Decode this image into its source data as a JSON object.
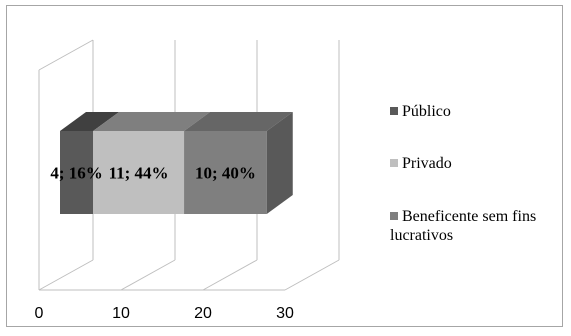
{
  "chart_data": {
    "type": "bar",
    "orientation": "horizontal",
    "stacking": "stacked",
    "style": "3d",
    "categories": [
      ""
    ],
    "series": [
      {
        "name": "Público",
        "values": [
          4
        ],
        "label": "4; 16%",
        "color": "#595959",
        "color_top": "#404040",
        "color_side": "#404040"
      },
      {
        "name": "Privado",
        "values": [
          11
        ],
        "label": "11; 44%",
        "color": "#bfbfbf",
        "color_top": "#7f7f7f",
        "color_side": "#7f7f7f"
      },
      {
        "name": "Beneficente sem fins lucrativos",
        "values": [
          10
        ],
        "label": "10; 40%",
        "color": "#7f7f7f",
        "color_top": "#666666",
        "color_side": "#595959"
      }
    ],
    "xlim": [
      0,
      30
    ],
    "xticks": [
      "0",
      "10",
      "20",
      "30"
    ],
    "grid": true,
    "legend_position": "right"
  }
}
